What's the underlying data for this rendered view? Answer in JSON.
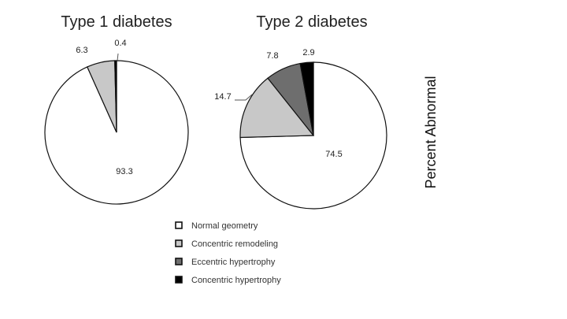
{
  "side_label": "Percent Abnormal",
  "chart_data": [
    {
      "type": "pie",
      "title": "Type 1 diabetes",
      "slices": [
        {
          "name": "Normal geometry",
          "value": 93.3,
          "color": "#ffffff"
        },
        {
          "name": "Concentric remodeling",
          "value": 6.3,
          "color": "#c8c8c8"
        },
        {
          "name": "Eccentric hypertrophy",
          "value": 0,
          "color": "#6e6e6e"
        },
        {
          "name": "Concentric hypertrophy",
          "value": 0.4,
          "color": "#000000"
        }
      ],
      "labels": {
        "normal": "93.3",
        "remodeling": "6.3",
        "concentric": "0.4"
      }
    },
    {
      "type": "pie",
      "title": "Type 2 diabetes",
      "slices": [
        {
          "name": "Normal geometry",
          "value": 74.5,
          "color": "#ffffff"
        },
        {
          "name": "Concentric remodeling",
          "value": 14.7,
          "color": "#c8c8c8"
        },
        {
          "name": "Eccentric hypertrophy",
          "value": 7.8,
          "color": "#6e6e6e"
        },
        {
          "name": "Concentric hypertrophy",
          "value": 2.9,
          "color": "#000000"
        }
      ],
      "labels": {
        "normal": "74.5",
        "remodeling": "14.7",
        "eccentric": "7.8",
        "concentric": "2.9"
      }
    }
  ],
  "legend": [
    {
      "label": "Normal geometry",
      "color": "#ffffff"
    },
    {
      "label": "Concentric remodeling",
      "color": "#c8c8c8"
    },
    {
      "label": "Eccentric hypertrophy",
      "color": "#6e6e6e"
    },
    {
      "label": "Concentric hypertrophy",
      "color": "#000000"
    }
  ]
}
